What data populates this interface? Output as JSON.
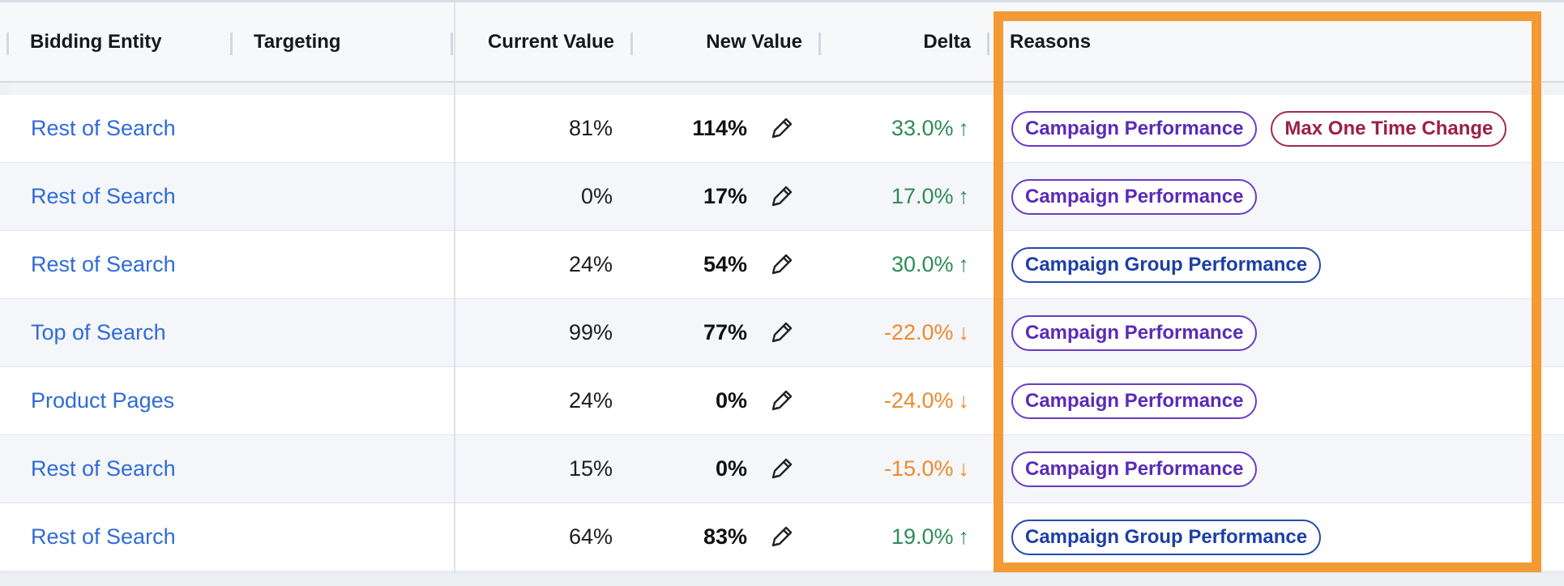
{
  "colors": {
    "link": "#2f6bd8",
    "positive": "#2e8b57",
    "negative": "#ec8a2e",
    "highlight": "#f39a34"
  },
  "table": {
    "headers": {
      "bidding_entity": "Bidding Entity",
      "targeting": "Targeting",
      "current_value": "Current Value",
      "new_value": "New Value",
      "delta": "Delta",
      "reasons": "Reasons"
    },
    "edit_icon": "pencil-icon",
    "rows": [
      {
        "entity": "Rest of Search",
        "current": "81%",
        "new": "114%",
        "delta": "33.0%",
        "direction": "up",
        "reasons": [
          "Campaign Performance",
          "Max One Time Change"
        ]
      },
      {
        "entity": "Rest of Search",
        "current": "0%",
        "new": "17%",
        "delta": "17.0%",
        "direction": "up",
        "reasons": [
          "Campaign Performance"
        ]
      },
      {
        "entity": "Rest of Search",
        "current": "24%",
        "new": "54%",
        "delta": "30.0%",
        "direction": "up",
        "reasons": [
          "Campaign Group Performance"
        ]
      },
      {
        "entity": "Top of Search",
        "current": "99%",
        "new": "77%",
        "delta": "-22.0%",
        "direction": "down",
        "reasons": [
          "Campaign Performance"
        ]
      },
      {
        "entity": "Product Pages",
        "current": "24%",
        "new": "0%",
        "delta": "-24.0%",
        "direction": "down",
        "reasons": [
          "Campaign Performance"
        ]
      },
      {
        "entity": "Rest of Search",
        "current": "15%",
        "new": "0%",
        "delta": "-15.0%",
        "direction": "down",
        "reasons": [
          "Campaign Performance"
        ]
      },
      {
        "entity": "Rest of Search",
        "current": "64%",
        "new": "83%",
        "delta": "19.0%",
        "direction": "up",
        "reasons": [
          "Campaign Group Performance"
        ]
      }
    ]
  },
  "reason_styles": {
    "Campaign Performance": {
      "text": "#5b2bb8",
      "border": "#6a3bc6"
    },
    "Max One Time Change": {
      "text": "#9c1f48",
      "border": "#a3294f"
    },
    "Campaign Group Performance": {
      "text": "#1d3fa6",
      "border": "#2648ae"
    }
  }
}
